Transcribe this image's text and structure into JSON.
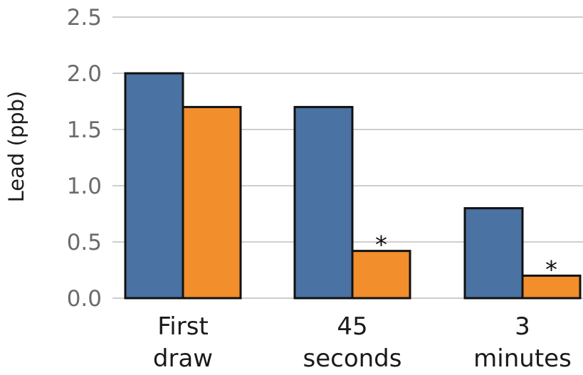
{
  "chart_data": {
    "type": "bar",
    "ylabel": "Lead (ppb)",
    "ylim": [
      0,
      2.5
    ],
    "yticks": [
      "0.0",
      "0.5",
      "1.0",
      "1.5",
      "2.0",
      "2.5"
    ],
    "grid": true,
    "categories": [
      [
        "First",
        "draw"
      ],
      [
        "45",
        "seconds"
      ],
      [
        "3",
        "minutes"
      ]
    ],
    "series": [
      {
        "color": "#4a72a2",
        "values": [
          2.0,
          1.7,
          0.8
        ]
      },
      {
        "color": "#f28e2b",
        "values": [
          1.7,
          0.42,
          0.2
        ]
      }
    ],
    "annotations": [
      {
        "category_index": 1,
        "series_index": 1,
        "text": "*"
      },
      {
        "category_index": 2,
        "series_index": 1,
        "text": "*"
      }
    ]
  }
}
